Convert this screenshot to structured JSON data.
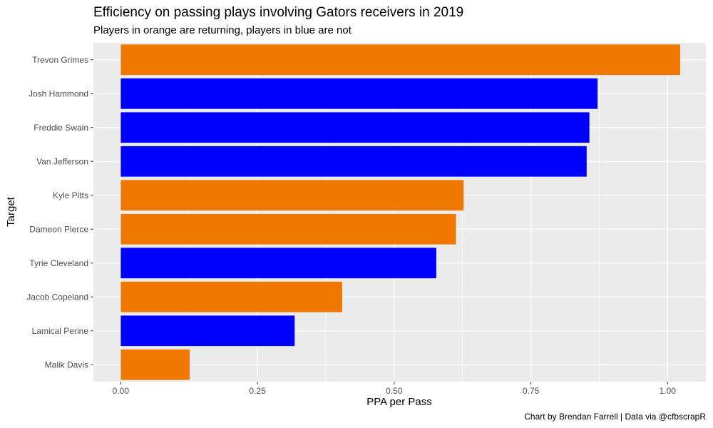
{
  "chart_data": {
    "type": "bar",
    "orientation": "horizontal",
    "title": "Efficiency on passing plays involving Gators receivers in 2019",
    "subtitle": "Players in orange are returning, players in blue are not",
    "xlabel": "PPA per Pass",
    "ylabel": "Target",
    "caption": "Chart by Brendan Farrell | Data via @cfbscrapR",
    "xlim": [
      -0.05,
      1.07
    ],
    "xticks": [
      0.0,
      0.25,
      0.5,
      0.75,
      1.0
    ],
    "xtick_labels": [
      "0.00",
      "0.25",
      "0.50",
      "0.75",
      "1.00"
    ],
    "grid": true,
    "legend": "none",
    "colors": {
      "returning": "#f07800",
      "not_returning": "#0000ff",
      "panel": "#ebebeb",
      "grid": "#ffffff"
    },
    "categories": [
      "Trevon Grimes",
      "Josh Hammond",
      "Freddie Swain",
      "Van Jefferson",
      "Kyle Pitts",
      "Dameon Pierce",
      "Tyrie Cleveland",
      "Jacob Copeland",
      "Lamical Perine",
      "Malik Davis"
    ],
    "values": [
      1.023,
      0.872,
      0.857,
      0.852,
      0.627,
      0.613,
      0.577,
      0.405,
      0.318,
      0.126
    ],
    "returning": [
      true,
      false,
      false,
      false,
      true,
      true,
      false,
      true,
      false,
      true
    ]
  }
}
